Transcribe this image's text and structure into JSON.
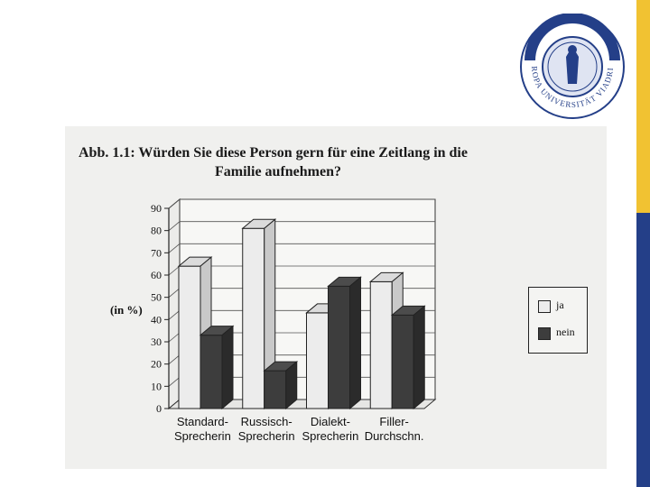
{
  "colors": {
    "accent_yellow": "#f1c232",
    "accent_blue": "#243f88",
    "series_ja": "#ececec",
    "series_nein": "#3d3d3d"
  },
  "logo": {
    "text": "EUROPA UNIVERSITÄT VIADRINA"
  },
  "figure": {
    "title_line1": "Abb. 1.1: Würden Sie diese Person gern für eine Zeitlang in die",
    "title_line2": "Familie aufnehmen?"
  },
  "chart_data": {
    "type": "bar",
    "categories": [
      [
        "Standard-",
        "Sprecherin"
      ],
      [
        "Russisch-",
        "Sprecherin"
      ],
      [
        "Dialekt-",
        "Sprecherin"
      ],
      [
        "Filler-",
        "Durchschn."
      ]
    ],
    "series": [
      {
        "name": "ja",
        "values": [
          64,
          81,
          43,
          57
        ]
      },
      {
        "name": "nein",
        "values": [
          33,
          17,
          55,
          42
        ]
      }
    ],
    "ylabel": "(in %)",
    "ylim": [
      0,
      90
    ],
    "yticks": [
      0,
      10,
      20,
      30,
      40,
      50,
      60,
      70,
      80,
      90
    ],
    "grid": true,
    "legend_position": "right"
  }
}
